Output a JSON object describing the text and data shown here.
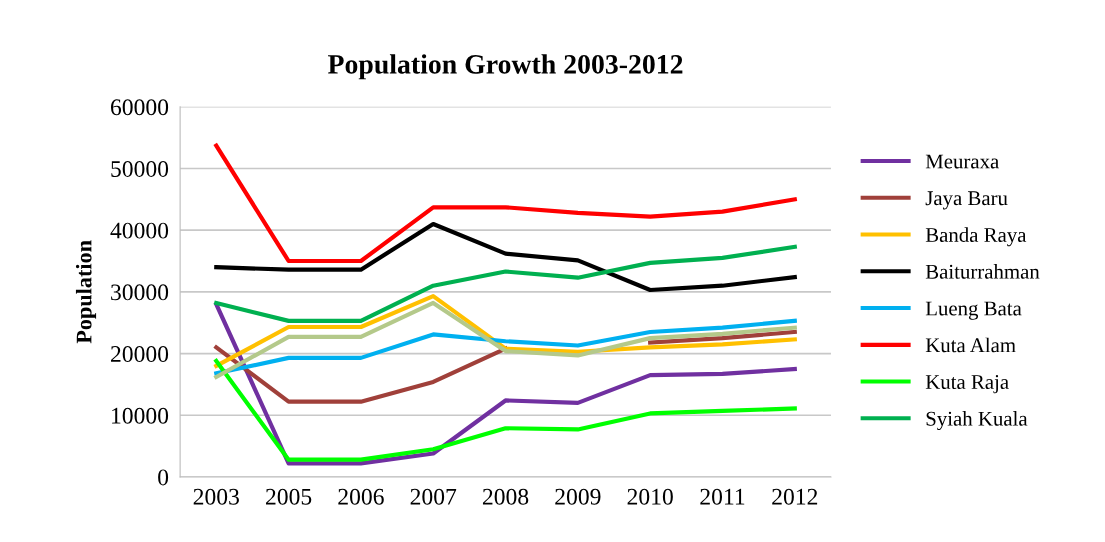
{
  "chart_data": {
    "type": "line",
    "title": "Population Growth 2003-2012",
    "ylabel": "Population",
    "categories": [
      "2003",
      "2005",
      "2006",
      "2007",
      "2008",
      "2009",
      "2010",
      "2011",
      "2012"
    ],
    "ylim": [
      0,
      60000
    ],
    "yticks": [
      0,
      10000,
      20000,
      30000,
      40000,
      50000,
      60000
    ],
    "grid": "y",
    "legend": "right",
    "marker": "none",
    "line_style": "solid",
    "series": [
      {
        "name": "Meuraxa",
        "color": "#7030a0",
        "values": [
          28000,
          2200,
          2200,
          3800,
          12400,
          12000,
          16500,
          16700,
          17500
        ]
      },
      {
        "name": "Jaya Baru",
        "color": "#a0403a",
        "values": [
          21000,
          12200,
          12200,
          15400,
          20800,
          null,
          21800,
          22500,
          23500
        ]
      },
      {
        "name": "Banda Raya",
        "color": "#ffc000",
        "values": [
          18000,
          24300,
          24300,
          29300,
          20800,
          20300,
          21000,
          21500,
          22300
        ]
      },
      {
        "name": "Baiturrahman",
        "color": "#000000",
        "values": [
          34000,
          33600,
          33600,
          41000,
          36200,
          35100,
          30300,
          31000,
          32400
        ]
      },
      {
        "name": "Lueng Bata",
        "color": "#00b0f0",
        "values": [
          16800,
          19300,
          19300,
          23100,
          22000,
          21300,
          23500,
          24200,
          25300
        ]
      },
      {
        "name": "Kuta Alam",
        "color": "#ff0000",
        "values": [
          53700,
          35000,
          35000,
          43700,
          43700,
          42800,
          42200,
          43000,
          45000
        ]
      },
      {
        "name": "Kuta Raja",
        "color": "#00ff00",
        "values": [
          18800,
          2800,
          2800,
          4500,
          7900,
          7700,
          10300,
          10700,
          11100
        ]
      },
      {
        "name": "Syiah Kuala",
        "color": "#00b050",
        "values": [
          28200,
          25300,
          25300,
          31000,
          33300,
          32300,
          34700,
          35500,
          37300
        ]
      },
      {
        "color": "#b4c98a",
        "values": [
          16200,
          22700,
          22700,
          28200,
          20400,
          19700,
          22500,
          23200,
          24200
        ]
      }
    ]
  }
}
